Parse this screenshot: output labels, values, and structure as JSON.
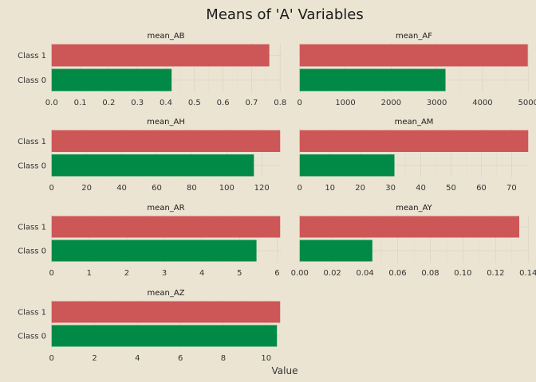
{
  "chart_data": {
    "type": "bar",
    "orientation": "horizontal",
    "title": "Means of 'A' Variables",
    "xlabel": "Value",
    "ylabel": "",
    "categories": [
      "Class 1",
      "Class 0"
    ],
    "colors": {
      "Class 1": "#cd5757",
      "Class 0": "#008a45"
    },
    "grid": true,
    "panels": [
      {
        "name": "mean_AB",
        "values": {
          "Class 1": 0.762,
          "Class 0": 0.42
        },
        "xlim": [
          0,
          0.8
        ],
        "ticks": [
          0.0,
          0.1,
          0.2,
          0.3,
          0.4,
          0.5,
          0.6,
          0.7,
          0.8
        ],
        "tick_labels": [
          "0.0",
          "0.1",
          "0.2",
          "0.3",
          "0.4",
          "0.5",
          "0.6",
          "0.7",
          "0.8"
        ]
      },
      {
        "name": "mean_AF",
        "values": {
          "Class 1": 4990,
          "Class 0": 3190
        },
        "xlim": [
          0,
          5000
        ],
        "ticks": [
          0,
          1000,
          2000,
          3000,
          4000,
          5000
        ],
        "tick_labels": [
          "0",
          "1000",
          "2000",
          "3000",
          "4000",
          "5000"
        ]
      },
      {
        "name": "mean_AH",
        "values": {
          "Class 1": 130.5,
          "Class 0": 115.5
        },
        "xlim": [
          0,
          130
        ],
        "ticks": [
          0,
          20,
          40,
          60,
          80,
          100,
          120
        ],
        "tick_labels": [
          "0",
          "20",
          "40",
          "60",
          "80",
          "100",
          "120"
        ]
      },
      {
        "name": "mean_AM",
        "values": {
          "Class 1": 75.5,
          "Class 0": 31.3
        },
        "xlim": [
          0,
          75
        ],
        "ticks": [
          0,
          10,
          20,
          30,
          40,
          50,
          60,
          70
        ],
        "tick_labels": [
          "0",
          "10",
          "20",
          "30",
          "40",
          "50",
          "60",
          "70"
        ]
      },
      {
        "name": "mean_AR",
        "values": {
          "Class 1": 6.08,
          "Class 0": 5.45
        },
        "xlim": [
          0,
          6
        ],
        "ticks": [
          0,
          1,
          2,
          3,
          4,
          5,
          6
        ],
        "tick_labels": [
          "0",
          "1",
          "2",
          "3",
          "4",
          "5",
          "6"
        ]
      },
      {
        "name": "mean_AY",
        "values": {
          "Class 1": 0.1345,
          "Class 0": 0.0445
        },
        "xlim": [
          0,
          0.14
        ],
        "ticks": [
          0.0,
          0.02,
          0.04,
          0.06,
          0.08,
          0.1,
          0.12,
          0.14
        ],
        "tick_labels": [
          "0.00",
          "0.02",
          "0.04",
          "0.06",
          "0.08",
          "0.10",
          "0.12",
          "0.14"
        ]
      },
      {
        "name": "mean_AZ",
        "values": {
          "Class 1": 10.65,
          "Class 0": 10.5
        },
        "xlim": [
          0,
          10
        ],
        "ticks": [
          0,
          2,
          4,
          6,
          8,
          10
        ],
        "tick_labels": [
          "0",
          "2",
          "4",
          "6",
          "8",
          "10"
        ]
      }
    ]
  }
}
